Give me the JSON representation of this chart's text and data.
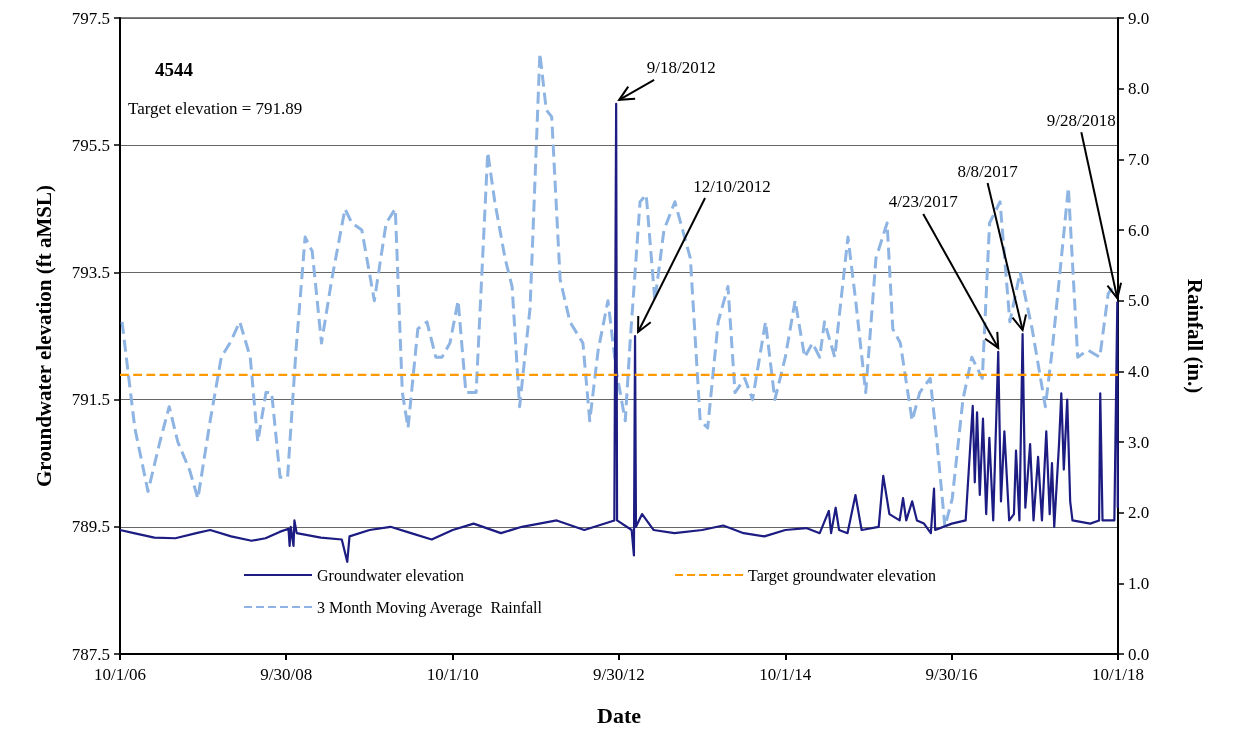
{
  "chart_data": {
    "type": "line",
    "xlabel": "Date",
    "ylabel": "Groundwater elevation (ft aMSL)",
    "y2label": "Rainfall (in.)",
    "xlim": [
      "2006-10-01",
      "2018-10-01"
    ],
    "xticks": [
      {
        "value": "2006-10-01",
        "label": "10/1/06"
      },
      {
        "value": "2008-09-30",
        "label": "9/30/08"
      },
      {
        "value": "2010-10-01",
        "label": "10/1/10"
      },
      {
        "value": "2012-09-30",
        "label": "9/30/12"
      },
      {
        "value": "2014-10-01",
        "label": "10/1/14"
      },
      {
        "value": "2016-09-30",
        "label": "9/30/16"
      },
      {
        "value": "2018-10-01",
        "label": "10/1/18"
      }
    ],
    "ylim": [
      787.5,
      797.5
    ],
    "yticks": [
      787.5,
      789.5,
      791.5,
      793.5,
      795.5,
      797.5
    ],
    "y2lim": [
      0,
      9
    ],
    "y2ticks": [
      {
        "value": 0,
        "label": "0.0"
      },
      {
        "value": 1,
        "label": "1.0"
      },
      {
        "value": 2,
        "label": "2.0"
      },
      {
        "value": 3,
        "label": "3.0"
      },
      {
        "value": 4,
        "label": "4.0"
      },
      {
        "value": 5,
        "label": "5.0"
      },
      {
        "value": 6,
        "label": "6.0"
      },
      {
        "value": 7,
        "label": "7.0"
      },
      {
        "value": 8,
        "label": "8.0"
      },
      {
        "value": 9,
        "label": "9.0"
      }
    ],
    "grid": "y",
    "legend": "bottom",
    "marker": "none",
    "series": [
      {
        "name": "Groundwater elevation",
        "color": "#1c1c82",
        "line_style": "solid",
        "x": [
          "2006-10-01",
          "2006-12-01",
          "2007-03-01",
          "2007-06-01",
          "2007-09-01",
          "2007-11-01",
          "2008-02-01",
          "2008-05-01",
          "2008-07-01",
          "2008-09-01",
          "2008-10-10",
          "2008-10-15",
          "2008-10-20",
          "2008-11-01",
          "2008-11-05",
          "2008-11-15",
          "2009-03-01",
          "2009-06-01",
          "2009-06-25",
          "2009-07-05",
          "2009-10-01",
          "2010-01-01",
          "2010-04-01",
          "2010-07-01",
          "2010-10-01",
          "2011-01-01",
          "2011-05-01",
          "2011-08-01",
          "2012-01-01",
          "2012-05-01",
          "2012-09-10",
          "2012-09-18",
          "2012-09-22",
          "2012-11-25",
          "2012-12-05",
          "2012-12-10",
          "2012-12-14",
          "2013-01-10",
          "2013-03-01",
          "2013-06-01",
          "2013-10-01",
          "2014-01-01",
          "2014-04-01",
          "2014-07-01",
          "2014-10-01",
          "2015-01-01",
          "2015-03-01",
          "2015-04-10",
          "2015-04-20",
          "2015-05-10",
          "2015-05-25",
          "2015-07-01",
          "2015-08-05",
          "2015-09-01",
          "2015-11-15",
          "2015-12-05",
          "2016-01-01",
          "2016-02-15",
          "2016-03-01",
          "2016-03-15",
          "2016-04-10",
          "2016-05-01",
          "2016-06-01",
          "2016-07-01",
          "2016-07-15",
          "2016-07-20",
          "2016-10-01",
          "2016-12-01",
          "2017-01-01",
          "2017-01-10",
          "2017-01-20",
          "2017-02-01",
          "2017-02-15",
          "2017-03-01",
          "2017-03-15",
          "2017-04-01",
          "2017-04-23",
          "2017-05-05",
          "2017-05-20",
          "2017-06-10",
          "2017-07-01",
          "2017-07-10",
          "2017-07-25",
          "2017-08-08",
          "2017-08-20",
          "2017-09-10",
          "2017-09-25",
          "2017-10-15",
          "2017-11-01",
          "2017-11-20",
          "2017-12-05",
          "2017-12-15",
          "2017-12-25",
          "2018-01-15",
          "2018-01-25",
          "2018-02-05",
          "2018-02-20",
          "2018-03-05",
          "2018-03-15",
          "2018-06-01",
          "2018-07-10",
          "2018-07-15",
          "2018-07-25",
          "2018-09-15",
          "2018-09-28",
          "2018-09-30"
        ],
        "values": [
          789.45,
          789.4,
          789.33,
          789.32,
          789.4,
          789.45,
          789.35,
          789.28,
          789.32,
          789.42,
          789.47,
          789.2,
          789.5,
          789.2,
          789.6,
          789.4,
          789.33,
          789.3,
          788.95,
          789.35,
          789.45,
          789.5,
          789.4,
          789.3,
          789.45,
          789.55,
          789.4,
          789.5,
          789.6,
          789.45,
          789.6,
          796.15,
          789.6,
          789.45,
          789.05,
          792.5,
          789.5,
          789.7,
          789.45,
          789.4,
          789.45,
          789.52,
          789.4,
          789.35,
          789.45,
          789.48,
          789.4,
          789.75,
          789.4,
          789.8,
          789.45,
          789.4,
          790.0,
          789.45,
          789.5,
          790.3,
          789.7,
          789.6,
          789.95,
          789.6,
          789.9,
          789.6,
          789.55,
          789.4,
          790.1,
          789.45,
          789.55,
          789.6,
          791.4,
          790.2,
          791.3,
          790.0,
          791.2,
          789.7,
          790.9,
          789.6,
          792.25,
          789.9,
          791.0,
          789.6,
          789.7,
          790.7,
          789.6,
          792.53,
          789.8,
          790.8,
          789.6,
          790.6,
          789.6,
          791.0,
          789.7,
          790.5,
          789.5,
          790.8,
          791.6,
          790.4,
          791.5,
          789.9,
          789.6,
          789.55,
          789.6,
          791.6,
          789.6,
          789.6,
          793.03,
          789.8
        ]
      },
      {
        "name": "Target groundwater elevation",
        "color": "#ff9900",
        "line_style": "dashed",
        "x": [
          "2006-10-01",
          "2018-10-01"
        ],
        "values": [
          791.89,
          791.89
        ]
      },
      {
        "name": "3 Month Moving Average  Rainfall",
        "color": "#8db4e2",
        "line_style": "dashed",
        "axis": "y2",
        "x": [
          "2006-10-10",
          "2006-12-05",
          "2007-02-01",
          "2007-03-25",
          "2007-05-05",
          "2007-06-12",
          "2007-08-03",
          "2007-09-08",
          "2007-11-01",
          "2007-12-20",
          "2008-01-27",
          "2008-03-10",
          "2008-04-25",
          "2008-05-28",
          "2008-07-03",
          "2008-07-28",
          "2008-09-03",
          "2008-10-06",
          "2008-11-12",
          "2008-12-22",
          "2009-01-22",
          "2009-03-04",
          "2009-04-18",
          "2009-06-15",
          "2009-07-15",
          "2009-08-28",
          "2009-10-22",
          "2009-12-13",
          "2010-01-22",
          "2010-02-22",
          "2010-03-19",
          "2010-05-01",
          "2010-06-10",
          "2010-07-19",
          "2010-08-15",
          "2010-09-19",
          "2010-10-25",
          "2010-11-28",
          "2011-01-12",
          "2011-03-04",
          "2011-04-04",
          "2011-05-19",
          "2011-06-19",
          "2011-07-22",
          "2011-09-06",
          "2011-10-19",
          "2011-11-16",
          "2011-12-10",
          "2012-01-16",
          "2012-02-28",
          "2012-04-25",
          "2012-05-25",
          "2012-07-01",
          "2012-08-13",
          "2012-09-19",
          "2012-10-28",
          "2012-11-18",
          "2013-01-01",
          "2013-01-28",
          "2013-03-07",
          "2013-04-16",
          "2013-06-03",
          "2013-08-10",
          "2013-09-22",
          "2013-10-25",
          "2013-12-10",
          "2014-01-22",
          "2014-02-22",
          "2014-04-06",
          "2014-05-10",
          "2014-07-06",
          "2014-08-16",
          "2014-10-01",
          "2014-11-13",
          "2014-12-25",
          "2015-01-28",
          "2015-03-01",
          "2015-03-22",
          "2015-05-06",
          "2015-07-03",
          "2015-08-06",
          "2015-09-19",
          "2015-11-03",
          "2015-12-22",
          "2016-01-16",
          "2016-02-18",
          "2016-04-10",
          "2016-05-13",
          "2016-06-28",
          "2016-07-28",
          "2016-09-01",
          "2016-10-03",
          "2016-11-19",
          "2016-12-28",
          "2017-02-12",
          "2017-03-16",
          "2017-05-01",
          "2017-06-13",
          "2017-07-28",
          "2017-09-19",
          "2017-11-16",
          "2017-12-16",
          "2018-01-19",
          "2018-02-25",
          "2018-04-07",
          "2018-05-22",
          "2018-07-13",
          "2018-08-19",
          "2018-09-10"
        ],
        "values": [
          4.7,
          3.2,
          2.3,
          3.0,
          3.5,
          3.0,
          2.6,
          2.2,
          3.3,
          4.2,
          4.4,
          4.7,
          4.2,
          3.0,
          3.7,
          3.7,
          2.5,
          2.5,
          4.3,
          5.9,
          5.7,
          4.4,
          5.3,
          6.3,
          6.1,
          6.0,
          5.0,
          6.1,
          6.3,
          3.7,
          3.2,
          4.6,
          4.7,
          4.2,
          4.2,
          4.4,
          5.0,
          3.7,
          3.7,
          7.1,
          6.4,
          5.6,
          5.2,
          3.5,
          4.9,
          8.5,
          7.7,
          7.6,
          5.3,
          4.7,
          4.4,
          3.3,
          4.3,
          5.0,
          4.0,
          3.3,
          4.4,
          6.4,
          6.5,
          5.0,
          6.0,
          6.4,
          5.6,
          3.3,
          3.2,
          4.7,
          5.2,
          3.7,
          3.9,
          3.6,
          4.7,
          3.6,
          4.2,
          5.0,
          4.2,
          4.4,
          4.2,
          4.7,
          4.2,
          5.9,
          5.0,
          3.7,
          5.6,
          6.1,
          4.6,
          4.4,
          3.3,
          3.7,
          3.9,
          3.0,
          1.8,
          2.2,
          3.6,
          4.2,
          3.9,
          6.1,
          6.4,
          4.7,
          5.4,
          4.6,
          3.5,
          4.3,
          5.4,
          6.6,
          4.2,
          4.3,
          4.2,
          5.1,
          5.2
        ]
      }
    ],
    "annotations": [
      "4544",
      "Target elevation = 791.89",
      {
        "text": "9/18/2012",
        "x": "2012-09-18",
        "y": 796.15
      },
      {
        "text": "12/10/2012",
        "x": "2012-12-10",
        "y": 792.5
      },
      {
        "text": "4/23/2017",
        "x": "2017-04-23",
        "y": 792.25
      },
      {
        "text": "8/8/2017",
        "x": "2017-08-08",
        "y": 792.53
      },
      {
        "text": "9/28/2018",
        "x": "2018-09-28",
        "y": 793.03
      }
    ]
  }
}
